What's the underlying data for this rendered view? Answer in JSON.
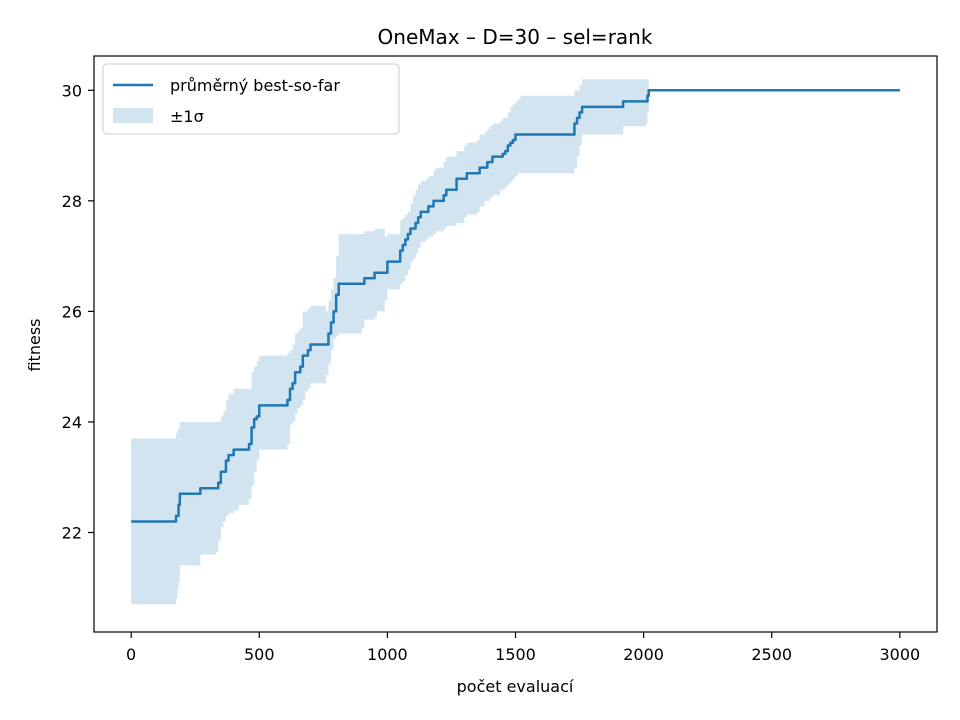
{
  "chart_data": {
    "type": "line",
    "title": "OneMax – D=30 – sel=rank",
    "xlabel": "počet evaluací",
    "ylabel": "fitness",
    "xlim": [
      -145,
      3145
    ],
    "ylim": [
      20.2,
      30.62
    ],
    "xticks": [
      0,
      500,
      1000,
      1500,
      2000,
      2500,
      3000
    ],
    "yticks": [
      22,
      24,
      26,
      28,
      30
    ],
    "grid": false,
    "legend_position": "top-left",
    "series": [
      {
        "name": "průměrný best-so-far",
        "kind": "line",
        "color": "#1f77b4",
        "x": [
          0,
          170,
          175,
          180,
          185,
          190,
          260,
          270,
          330,
          340,
          350,
          360,
          370,
          380,
          400,
          420,
          460,
          470,
          480,
          490,
          500,
          600,
          610,
          620,
          630,
          640,
          650,
          660,
          670,
          680,
          690,
          700,
          710,
          760,
          770,
          780,
          790,
          800,
          810,
          900,
          910,
          940,
          950,
          960,
          990,
          1000,
          1040,
          1050,
          1060,
          1070,
          1080,
          1090,
          1100,
          1110,
          1120,
          1130,
          1150,
          1160,
          1180,
          1190,
          1220,
          1230,
          1260,
          1270,
          1300,
          1310,
          1350,
          1360,
          1380,
          1390,
          1400,
          1410,
          1440,
          1450,
          1460,
          1470,
          1480,
          1490,
          1500,
          1510,
          1520,
          1530,
          1540,
          1550,
          1560,
          1570,
          1720,
          1730,
          1740,
          1750,
          1760,
          1770,
          1910,
          1920,
          2010,
          2015,
          2020,
          3000
        ],
        "y": [
          22.2,
          22.2,
          22.3,
          22.3,
          22.5,
          22.7,
          22.7,
          22.8,
          22.8,
          22.9,
          23.1,
          23.1,
          23.3,
          23.4,
          23.5,
          23.5,
          23.6,
          23.9,
          24.05,
          24.1,
          24.3,
          24.3,
          24.4,
          24.6,
          24.7,
          24.9,
          24.9,
          25.0,
          25.2,
          25.2,
          25.3,
          25.4,
          25.4,
          25.4,
          25.6,
          25.8,
          26.0,
          26.3,
          26.5,
          26.5,
          26.6,
          26.6,
          26.7,
          26.7,
          26.7,
          26.9,
          26.9,
          27.1,
          27.2,
          27.3,
          27.4,
          27.5,
          27.5,
          27.6,
          27.7,
          27.8,
          27.8,
          27.9,
          28.0,
          28.0,
          28.1,
          28.2,
          28.2,
          28.4,
          28.4,
          28.5,
          28.5,
          28.6,
          28.6,
          28.7,
          28.7,
          28.8,
          28.8,
          28.85,
          28.9,
          29.0,
          29.05,
          29.1,
          29.2,
          29.2,
          29.2,
          29.2,
          29.2,
          29.2,
          29.2,
          29.2,
          29.2,
          29.4,
          29.5,
          29.6,
          29.7,
          29.7,
          29.7,
          29.8,
          29.8,
          29.9,
          30.0,
          30.0
        ]
      },
      {
        "name": "±1σ",
        "kind": "band",
        "color": "#1f77b4",
        "opacity": 0.2,
        "x": [
          0,
          170,
          175,
          180,
          185,
          190,
          260,
          270,
          330,
          340,
          350,
          360,
          370,
          380,
          400,
          420,
          460,
          470,
          480,
          490,
          500,
          600,
          610,
          620,
          630,
          640,
          650,
          660,
          670,
          680,
          690,
          700,
          710,
          760,
          770,
          780,
          790,
          800,
          810,
          900,
          910,
          940,
          950,
          960,
          990,
          1000,
          1040,
          1050,
          1060,
          1070,
          1080,
          1090,
          1100,
          1110,
          1120,
          1130,
          1150,
          1160,
          1180,
          1190,
          1220,
          1230,
          1260,
          1270,
          1300,
          1310,
          1350,
          1360,
          1380,
          1390,
          1400,
          1410,
          1440,
          1450,
          1460,
          1470,
          1480,
          1490,
          1500,
          1510,
          1520,
          1530,
          1540,
          1550,
          1560,
          1570,
          1720,
          1730,
          1740,
          1750,
          1760,
          1770,
          1910,
          1920,
          2010,
          2015,
          2020,
          3000
        ],
        "lower": [
          20.7,
          20.7,
          20.8,
          20.95,
          21.1,
          21.4,
          21.4,
          21.6,
          21.65,
          21.85,
          22.1,
          22.2,
          22.3,
          22.35,
          22.4,
          22.5,
          22.6,
          22.85,
          23.1,
          23.3,
          23.5,
          23.5,
          23.6,
          23.95,
          24.0,
          24.15,
          24.25,
          24.3,
          24.4,
          24.55,
          24.6,
          24.7,
          24.7,
          24.85,
          25.05,
          25.3,
          25.5,
          25.55,
          25.6,
          25.7,
          25.85,
          25.85,
          25.9,
          26.0,
          26.2,
          26.4,
          26.4,
          26.5,
          26.55,
          26.65,
          26.75,
          26.9,
          26.95,
          27.05,
          27.15,
          27.25,
          27.3,
          27.35,
          27.4,
          27.45,
          27.5,
          27.55,
          27.55,
          27.6,
          27.7,
          27.75,
          27.8,
          27.9,
          28.0,
          28.0,
          28.05,
          28.1,
          28.2,
          28.2,
          28.25,
          28.3,
          28.35,
          28.4,
          28.45,
          28.5,
          28.5,
          28.5,
          28.5,
          28.5,
          28.5,
          28.5,
          28.5,
          28.6,
          28.8,
          29.0,
          29.2,
          29.2,
          29.2,
          29.35,
          29.4,
          29.6,
          30.0,
          30.0
        ],
        "upper": [
          23.7,
          23.7,
          23.8,
          23.85,
          23.9,
          24.0,
          24.0,
          24.0,
          24.0,
          24.0,
          24.1,
          24.2,
          24.4,
          24.5,
          24.6,
          24.6,
          24.6,
          24.9,
          25.0,
          25.1,
          25.2,
          25.2,
          25.25,
          25.3,
          25.4,
          25.6,
          25.65,
          25.7,
          26.0,
          26.0,
          26.05,
          26.1,
          26.1,
          26.0,
          26.2,
          26.4,
          26.6,
          27.0,
          27.4,
          27.4,
          27.45,
          27.45,
          27.5,
          27.5,
          27.35,
          27.4,
          27.4,
          27.65,
          27.7,
          27.75,
          27.8,
          27.95,
          28.1,
          28.2,
          28.3,
          28.35,
          28.4,
          28.45,
          28.55,
          28.6,
          28.7,
          28.8,
          28.8,
          28.9,
          29.0,
          29.05,
          29.1,
          29.2,
          29.25,
          29.3,
          29.35,
          29.4,
          29.45,
          29.5,
          29.5,
          29.6,
          29.7,
          29.75,
          29.8,
          29.85,
          29.9,
          29.9,
          29.9,
          29.9,
          29.9,
          29.9,
          29.9,
          30.0,
          30.0,
          30.1,
          30.2,
          30.2,
          30.2,
          30.2,
          30.2,
          30.2,
          30.0,
          30.0
        ]
      }
    ]
  }
}
